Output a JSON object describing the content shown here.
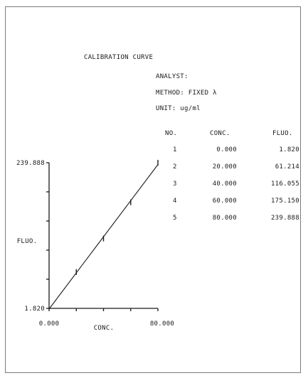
{
  "header": {
    "title": "CALIBRATION  CURVE",
    "analyst": "ANALYST:",
    "method": "METHOD: FIXED λ",
    "unit": "UNIT: ug/ml"
  },
  "table": {
    "columns": [
      "NO.",
      "CONC.",
      "FLUO."
    ],
    "rows": [
      {
        "no": "1",
        "conc": "0.000",
        "fluo": "1.820"
      },
      {
        "no": "2",
        "conc": "20.000",
        "fluo": "61.214"
      },
      {
        "no": "3",
        "conc": "40.000",
        "fluo": "116.055"
      },
      {
        "no": "4",
        "conc": "60.000",
        "fluo": "175.150"
      },
      {
        "no": "5",
        "conc": "80.000",
        "fluo": "239.888"
      }
    ]
  },
  "chart_data": {
    "type": "scatter",
    "x": [
      0,
      20,
      40,
      60,
      80
    ],
    "y": [
      1.82,
      61.214,
      116.055,
      175.15,
      239.888
    ],
    "fit_line": true,
    "xlabel": "CONC.",
    "ylabel": "FLUO.",
    "xlim": [
      0,
      80
    ],
    "ylim": [
      1.82,
      239.888
    ],
    "x_tick_labels": [
      "0.000",
      "80.000"
    ],
    "y_tick_labels": [
      "1.820",
      "239.888"
    ],
    "grid": false
  }
}
